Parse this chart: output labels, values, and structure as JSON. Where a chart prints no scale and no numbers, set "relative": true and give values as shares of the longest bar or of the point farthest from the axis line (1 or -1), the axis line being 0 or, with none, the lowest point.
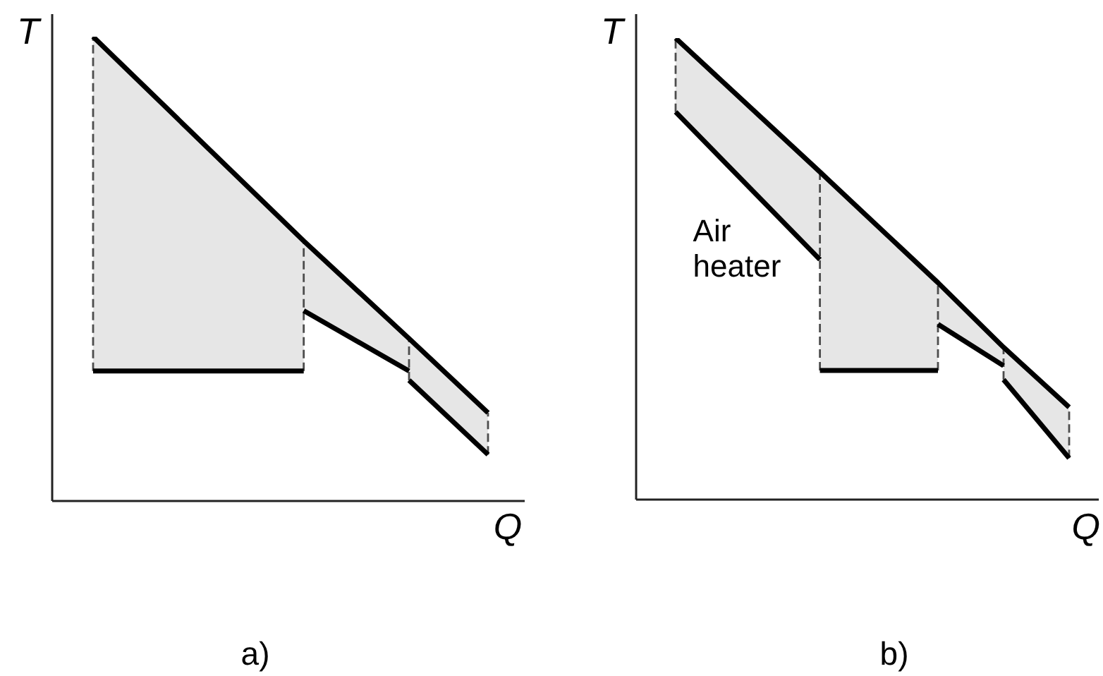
{
  "chart_data": [
    {
      "type": "line",
      "relative": true,
      "title": "a)",
      "xlabel": "Q",
      "ylabel": "T",
      "categories": [
        null,
        null,
        null,
        null,
        null,
        null,
        null,
        null,
        null,
        null,
        null,
        null,
        null,
        null,
        null,
        null,
        null,
        null,
        null,
        null,
        null,
        null,
        null,
        null,
        null,
        null,
        null,
        null,
        null,
        null,
        null
      ],
      "series": [
        {
          "color": "#000000",
          "values": [
            1,
            null,
            null,
            null,
            null,
            null,
            null,
            null,
            null,
            null,
            null,
            null,
            null,
            null,
            null,
            null,
            0.56,
            null,
            null,
            null,
            null,
            null,
            null,
            null,
            0.35,
            null,
            null,
            null,
            null,
            null,
            0.19
          ]
        },
        {
          "color": "#000000",
          "values": [
            0.28,
            null,
            null,
            null,
            null,
            null,
            null,
            null,
            null,
            null,
            null,
            null,
            null,
            null,
            null,
            null,
            0.28,
            null,
            null,
            null,
            null,
            null,
            null,
            null,
            null,
            null,
            null,
            null,
            null,
            null,
            null
          ],
          "lower": [
            0.28,
            null,
            null,
            null,
            null,
            null,
            null,
            null,
            null,
            null,
            null,
            null,
            null,
            null,
            null,
            null,
            0.28,
            null,
            null,
            null,
            null,
            null,
            null,
            null,
            null,
            null,
            null,
            null,
            null,
            null,
            null
          ],
          "upper": [
            1,
            null,
            null,
            null,
            null,
            null,
            null,
            null,
            null,
            null,
            null,
            null,
            null,
            null,
            null,
            null,
            0.56,
            null,
            null,
            null,
            null,
            null,
            null,
            null,
            null,
            null,
            null,
            null,
            null,
            null,
            null
          ]
        },
        {
          "color": "#000000",
          "values": [
            null,
            null,
            null,
            null,
            null,
            null,
            null,
            null,
            null,
            null,
            null,
            null,
            null,
            null,
            null,
            null,
            0.41,
            null,
            null,
            null,
            null,
            null,
            null,
            null,
            0.28,
            null,
            null,
            null,
            null,
            null,
            null
          ],
          "lower": [
            null,
            null,
            null,
            null,
            null,
            null,
            null,
            null,
            null,
            null,
            null,
            null,
            null,
            null,
            null,
            null,
            0.41,
            null,
            null,
            null,
            null,
            null,
            null,
            null,
            0.28,
            null,
            null,
            null,
            null,
            null,
            null
          ],
          "upper": [
            null,
            null,
            null,
            null,
            null,
            null,
            null,
            null,
            null,
            null,
            null,
            null,
            null,
            null,
            null,
            null,
            0.56,
            null,
            null,
            null,
            null,
            null,
            null,
            null,
            0.35,
            null,
            null,
            null,
            null,
            null,
            null
          ]
        },
        {
          "color": "#000000",
          "values": [
            null,
            null,
            null,
            null,
            null,
            null,
            null,
            null,
            null,
            null,
            null,
            null,
            null,
            null,
            null,
            null,
            null,
            null,
            null,
            null,
            null,
            null,
            null,
            null,
            0.26,
            null,
            null,
            null,
            null,
            null,
            0.1
          ],
          "lower": [
            null,
            null,
            null,
            null,
            null,
            null,
            null,
            null,
            null,
            null,
            null,
            null,
            null,
            null,
            null,
            null,
            null,
            null,
            null,
            null,
            null,
            null,
            null,
            null,
            0.26,
            null,
            null,
            null,
            null,
            null,
            0.1
          ],
          "upper": [
            null,
            null,
            null,
            null,
            null,
            null,
            null,
            null,
            null,
            null,
            null,
            null,
            null,
            null,
            null,
            null,
            null,
            null,
            null,
            null,
            null,
            null,
            null,
            null,
            0.35,
            null,
            null,
            null,
            null,
            null,
            0.19
          ]
        }
      ]
    },
    {
      "type": "line",
      "relative": true,
      "title": "b)",
      "xlabel": "Q",
      "ylabel": "T",
      "categories": [
        null,
        null,
        null,
        null,
        null,
        null,
        null,
        null,
        null,
        null,
        null,
        null,
        null,
        null,
        null,
        null,
        null,
        null,
        null,
        null,
        null,
        null,
        null,
        null,
        null,
        null,
        null,
        null,
        null,
        null,
        null
      ],
      "series": [
        {
          "color": "#000000",
          "values": [
            1,
            null,
            null,
            null,
            null,
            null,
            null,
            null,
            null,
            null,
            null,
            0.71,
            null,
            null,
            null,
            null,
            null,
            null,
            null,
            null,
            0.47,
            null,
            null,
            null,
            null,
            0.33,
            null,
            null,
            null,
            null,
            0.2
          ]
        },
        {
          "name": "Air heater",
          "color": "#000000",
          "values": [
            0.84,
            null,
            null,
            null,
            null,
            null,
            null,
            null,
            null,
            null,
            null,
            0.52,
            null,
            null,
            null,
            null,
            null,
            null,
            null,
            null,
            null,
            null,
            null,
            null,
            null,
            null,
            null,
            null,
            null,
            null,
            null
          ],
          "lower": [
            0.84,
            null,
            null,
            null,
            null,
            null,
            null,
            null,
            null,
            null,
            null,
            0.52,
            null,
            null,
            null,
            null,
            null,
            null,
            null,
            null,
            null,
            null,
            null,
            null,
            null,
            null,
            null,
            null,
            null,
            null,
            null
          ],
          "upper": [
            1,
            null,
            null,
            null,
            null,
            null,
            null,
            null,
            null,
            null,
            null,
            0.71,
            null,
            null,
            null,
            null,
            null,
            null,
            null,
            null,
            null,
            null,
            null,
            null,
            null,
            null,
            null,
            null,
            null,
            null,
            null
          ]
        },
        {
          "color": "#000000",
          "values": [
            null,
            null,
            null,
            null,
            null,
            null,
            null,
            null,
            null,
            null,
            null,
            0.28,
            null,
            null,
            null,
            null,
            null,
            null,
            null,
            null,
            0.28,
            null,
            null,
            null,
            null,
            null,
            null,
            null,
            null,
            null,
            null
          ],
          "lower": [
            null,
            null,
            null,
            null,
            null,
            null,
            null,
            null,
            null,
            null,
            null,
            0.28,
            null,
            null,
            null,
            null,
            null,
            null,
            null,
            null,
            0.28,
            null,
            null,
            null,
            null,
            null,
            null,
            null,
            null,
            null,
            null
          ],
          "upper": [
            null,
            null,
            null,
            null,
            null,
            null,
            null,
            null,
            null,
            null,
            null,
            0.71,
            null,
            null,
            null,
            null,
            null,
            null,
            null,
            null,
            0.47,
            null,
            null,
            null,
            null,
            null,
            null,
            null,
            null,
            null,
            null
          ]
        },
        {
          "color": "#000000",
          "values": [
            null,
            null,
            null,
            null,
            null,
            null,
            null,
            null,
            null,
            null,
            null,
            null,
            null,
            null,
            null,
            null,
            null,
            null,
            null,
            null,
            0.38,
            null,
            null,
            null,
            null,
            0.29,
            null,
            null,
            null,
            null,
            null
          ],
          "lower": [
            null,
            null,
            null,
            null,
            null,
            null,
            null,
            null,
            null,
            null,
            null,
            null,
            null,
            null,
            null,
            null,
            null,
            null,
            null,
            null,
            0.38,
            null,
            null,
            null,
            null,
            0.29,
            null,
            null,
            null,
            null,
            null
          ],
          "upper": [
            null,
            null,
            null,
            null,
            null,
            null,
            null,
            null,
            null,
            null,
            null,
            null,
            null,
            null,
            null,
            null,
            null,
            null,
            null,
            null,
            0.47,
            null,
            null,
            null,
            null,
            0.33,
            null,
            null,
            null,
            null,
            null
          ]
        },
        {
          "color": "#000000",
          "values": [
            null,
            null,
            null,
            null,
            null,
            null,
            null,
            null,
            null,
            null,
            null,
            null,
            null,
            null,
            null,
            null,
            null,
            null,
            null,
            null,
            null,
            null,
            null,
            null,
            null,
            0.26,
            null,
            null,
            null,
            null,
            0.09
          ],
          "lower": [
            null,
            null,
            null,
            null,
            null,
            null,
            null,
            null,
            null,
            null,
            null,
            null,
            null,
            null,
            null,
            null,
            null,
            null,
            null,
            null,
            null,
            null,
            null,
            null,
            null,
            0.26,
            null,
            null,
            null,
            null,
            0.09
          ],
          "upper": [
            null,
            null,
            null,
            null,
            null,
            null,
            null,
            null,
            null,
            null,
            null,
            null,
            null,
            null,
            null,
            null,
            null,
            null,
            null,
            null,
            null,
            null,
            null,
            null,
            null,
            0.33,
            null,
            null,
            null,
            null,
            0.2
          ]
        }
      ]
    }
  ]
}
